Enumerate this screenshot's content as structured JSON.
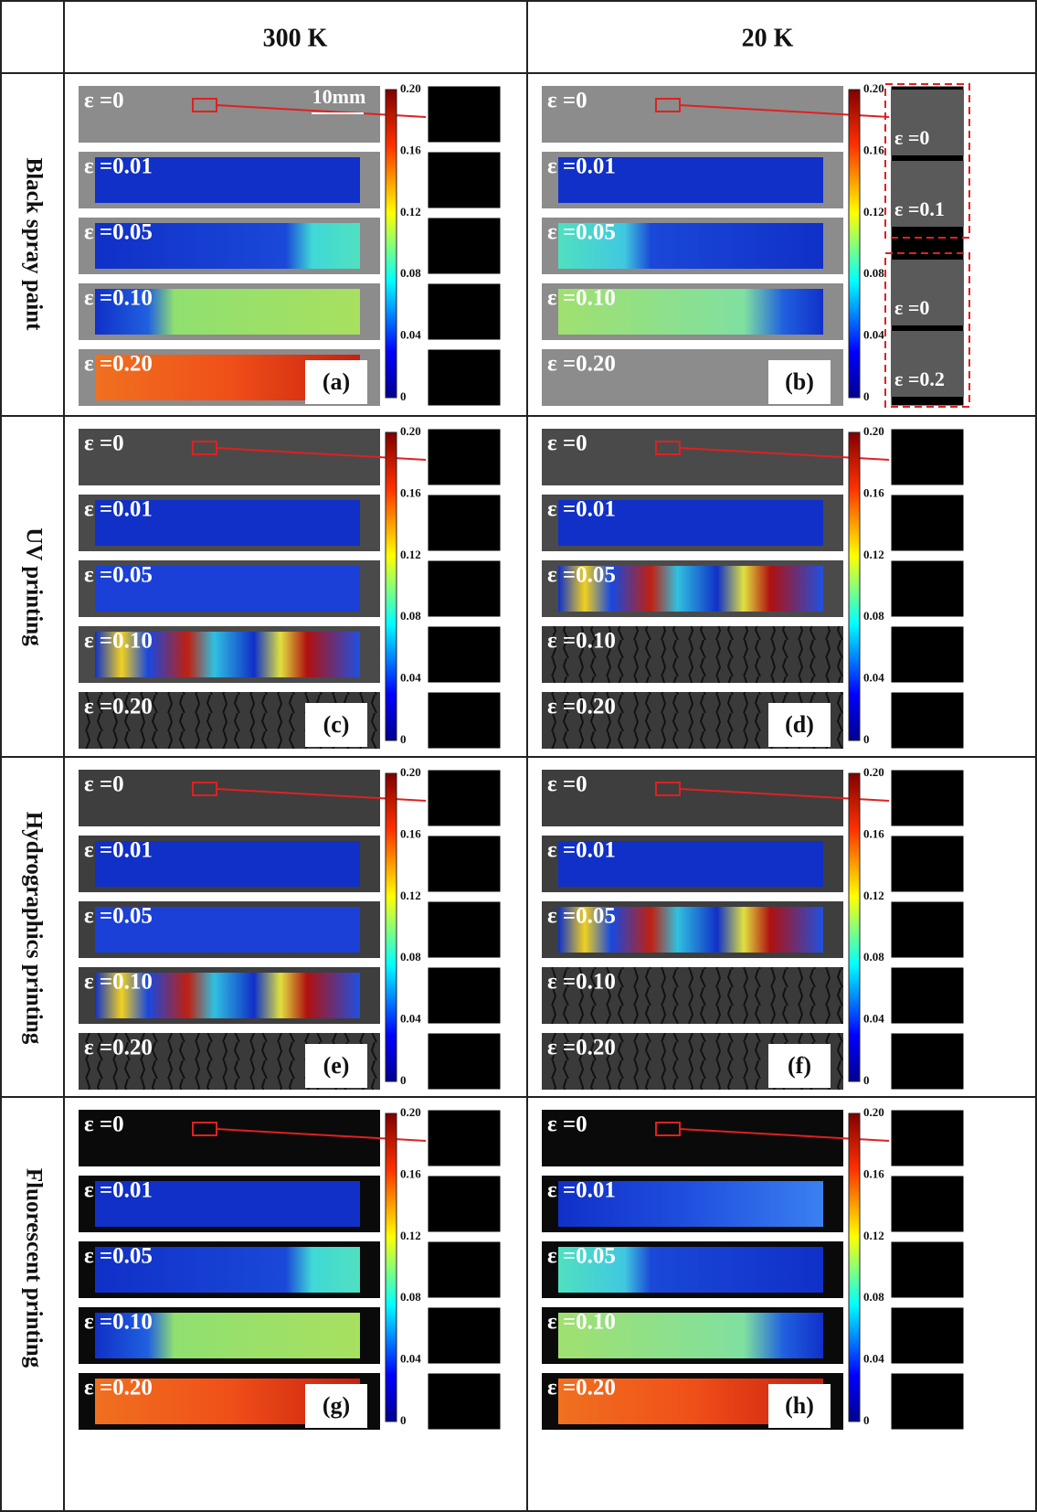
{
  "header": {
    "columns": [
      "300 K",
      "20 K"
    ]
  },
  "rows": [
    {
      "label": "Black spray paint",
      "cells": [
        {
          "panel": "(a)",
          "scale": "10mm",
          "strains": [
            "ε =0",
            "ε =0.01",
            "ε =0.05",
            "ε =0.10",
            "ε =0.20"
          ],
          "colorbar": [
            "0.20",
            "0.16",
            "0.12",
            "0.08",
            "0.04",
            "0"
          ]
        },
        {
          "panel": "(b)",
          "strains": [
            "ε =0",
            "ε =0.01",
            "ε =0.05",
            "ε =0.10",
            "ε =0.20"
          ],
          "colorbar": [
            "0.20",
            "0.16",
            "0.12",
            "0.08",
            "0.04",
            "0"
          ],
          "insets": [
            "ε =0",
            "ε =0.1",
            "ε =0",
            "ε =0.2"
          ]
        }
      ]
    },
    {
      "label": "UV printing",
      "cells": [
        {
          "panel": "(c)",
          "strains": [
            "ε =0",
            "ε =0.01",
            "ε =0.05",
            "ε =0.10",
            "ε =0.20"
          ],
          "colorbar": [
            "0.20",
            "0.16",
            "0.12",
            "0.08",
            "0.04",
            "0"
          ]
        },
        {
          "panel": "(d)",
          "strains": [
            "ε =0",
            "ε =0.01",
            "ε =0.05",
            "ε =0.10",
            "ε =0.20"
          ],
          "colorbar": [
            "0.20",
            "0.16",
            "0.12",
            "0.08",
            "0.04",
            "0"
          ]
        }
      ]
    },
    {
      "label": "Hydrographics printing",
      "cells": [
        {
          "panel": "(e)",
          "strains": [
            "ε =0",
            "ε =0.01",
            "ε =0.05",
            "ε =0.10",
            "ε =0.20"
          ],
          "colorbar": [
            "0.20",
            "0.16",
            "0.12",
            "0.08",
            "0.04",
            "0"
          ]
        },
        {
          "panel": "(f)",
          "strains": [
            "ε =0",
            "ε =0.01",
            "ε =0.05",
            "ε =0.10",
            "ε =0.20"
          ],
          "colorbar": [
            "0.20",
            "0.16",
            "0.12",
            "0.08",
            "0.04",
            "0"
          ]
        }
      ]
    },
    {
      "label": "Fluorescent printing",
      "cells": [
        {
          "panel": "(g)",
          "strains": [
            "ε =0",
            "ε =0.01",
            "ε =0.05",
            "ε =0.10",
            "ε =0.20"
          ],
          "colorbar": [
            "0.20",
            "0.16",
            "0.12",
            "0.08",
            "0.04",
            "0"
          ]
        },
        {
          "panel": "(h)",
          "strains": [
            "ε =0",
            "ε =0.01",
            "ε =0.05",
            "ε =0.10",
            "ε =0.20"
          ],
          "colorbar": [
            "0.20",
            "0.16",
            "0.12",
            "0.08",
            "0.04",
            "0"
          ]
        }
      ]
    }
  ]
}
